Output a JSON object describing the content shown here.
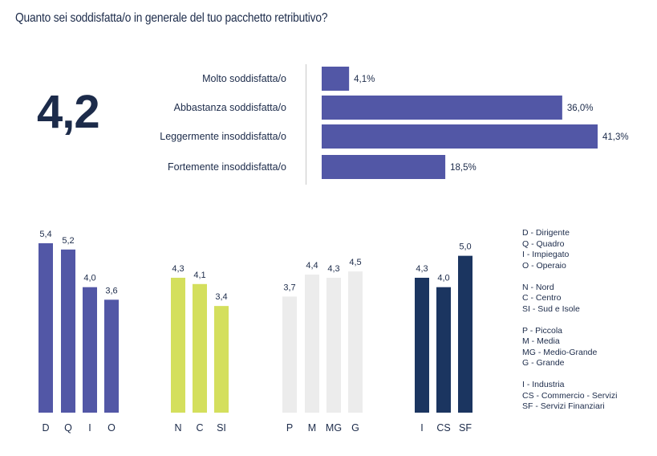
{
  "title": "Quanto sei soddisfatta/o in generale del tuo pacchetto retributivo?",
  "big_score": "4,2",
  "colors": {
    "primary_bar": "#5257a6",
    "role_bars": "#5257a6",
    "area_bars": "#d4df5d",
    "size_bars": "#ececec",
    "sector_bars": "#1b3560",
    "text": "#1c2b4a"
  },
  "legend": [
    [
      "D - Dirigente",
      "Q - Quadro",
      "I - Impiegato",
      "O - Operaio"
    ],
    [
      "N - Nord",
      "C - Centro",
      "SI - Sud e Isole"
    ],
    [
      "P - Piccola",
      "M - Media",
      "MG - Medio-Grande",
      "G - Grande"
    ],
    [
      "I - Industria",
      "CS - Commercio - Servizi",
      "SF - Servizi Finanziari"
    ]
  ],
  "chart_data": [
    {
      "type": "bar",
      "orientation": "horizontal",
      "categories": [
        "Molto soddisfatta/o",
        "Abbastanza soddisfatta/o",
        "Leggermente insoddisfatta/o",
        "Fortemente insoddisfatta/o"
      ],
      "values": [
        4.1,
        36.0,
        41.3,
        18.5
      ],
      "value_labels": [
        "4,1%",
        "36,0%",
        "41,3%",
        "18,5%"
      ],
      "unit": "%",
      "grid": false
    },
    {
      "type": "bar",
      "categories": [
        "D",
        "Q",
        "I",
        "O"
      ],
      "values": [
        5.4,
        5.2,
        4.0,
        3.6
      ],
      "value_labels": [
        "5,4",
        "5,2",
        "4,0",
        "3,6"
      ],
      "ylim": [
        0,
        5.4
      ],
      "grid": false
    },
    {
      "type": "bar",
      "categories": [
        "N",
        "C",
        "SI"
      ],
      "values": [
        4.3,
        4.1,
        3.4
      ],
      "value_labels": [
        "4,3",
        "4,1",
        "3,4"
      ],
      "ylim": [
        0,
        5.4
      ],
      "grid": false
    },
    {
      "type": "bar",
      "categories": [
        "P",
        "M",
        "MG",
        "G"
      ],
      "values": [
        3.7,
        4.4,
        4.3,
        4.5
      ],
      "value_labels": [
        "3,7",
        "4,4",
        "4,3",
        "4,5"
      ],
      "ylim": [
        0,
        5.4
      ],
      "grid": false
    },
    {
      "type": "bar",
      "categories": [
        "I",
        "CS",
        "SF"
      ],
      "values": [
        4.3,
        4.0,
        5.0
      ],
      "value_labels": [
        "4,3",
        "4,0",
        "5,0"
      ],
      "ylim": [
        0,
        5.4
      ],
      "grid": false
    }
  ]
}
